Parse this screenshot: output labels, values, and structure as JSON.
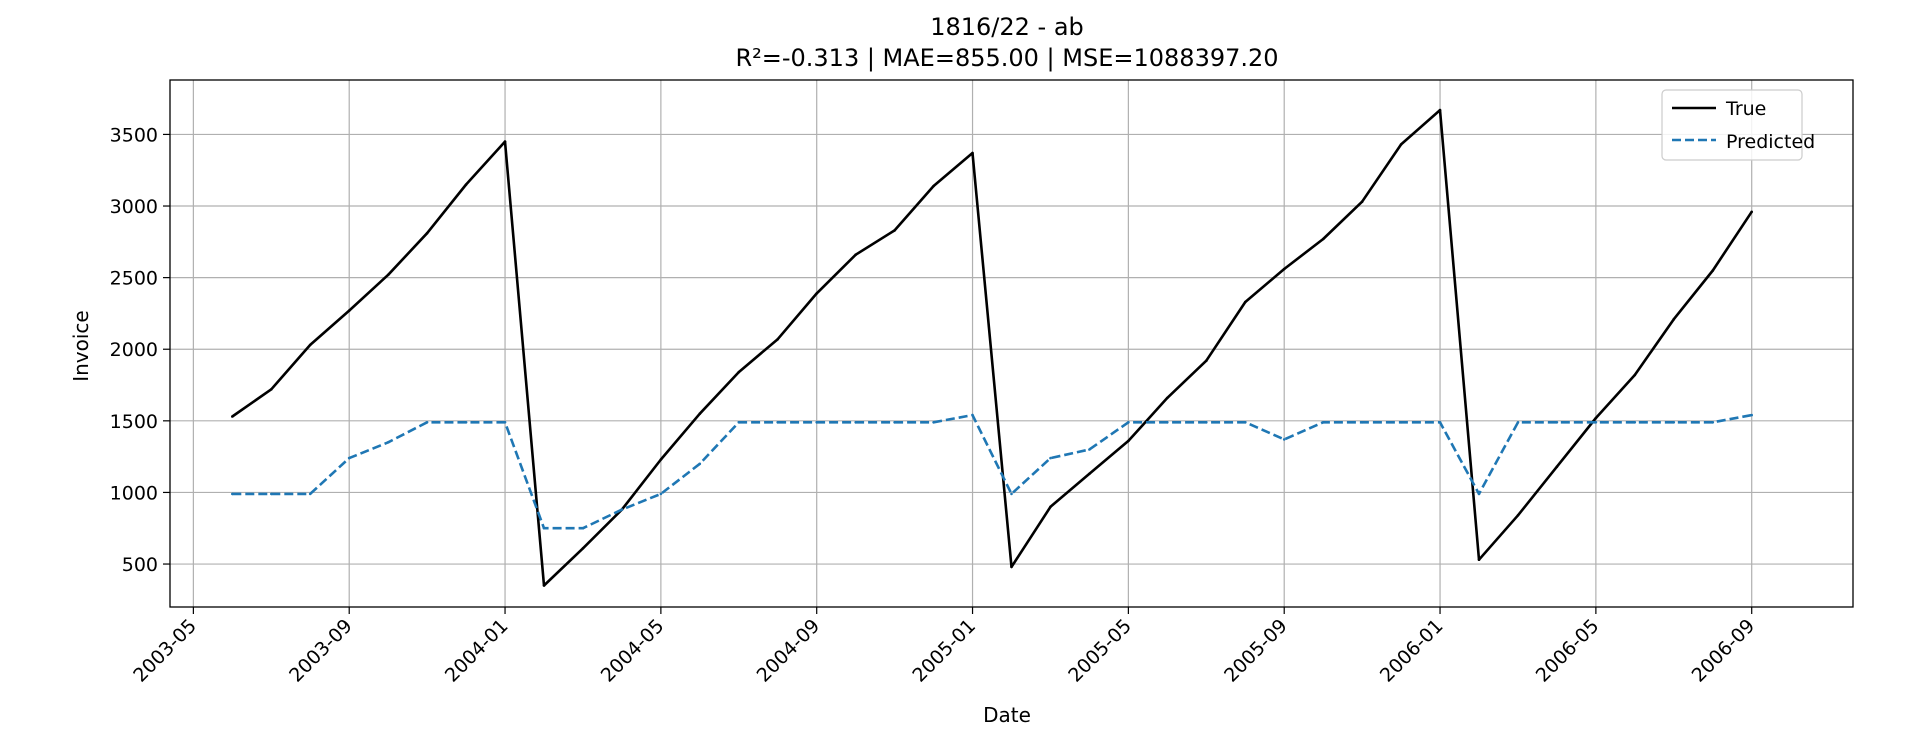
{
  "chart_data": {
    "type": "line",
    "title": "1816/22 - ab",
    "subtitle": "R²=-0.313 | MAE=855.00 | MSE=1088397.20",
    "xlabel": "Date",
    "ylabel": "Invoice",
    "x": [
      "2003-06",
      "2003-07",
      "2003-08",
      "2003-09",
      "2003-10",
      "2003-11",
      "2003-12",
      "2004-01",
      "2004-02",
      "2004-03",
      "2004-04",
      "2004-05",
      "2004-06",
      "2004-07",
      "2004-08",
      "2004-09",
      "2004-10",
      "2004-11",
      "2004-12",
      "2005-01",
      "2005-02",
      "2005-03",
      "2005-04",
      "2005-05",
      "2005-06",
      "2005-07",
      "2005-08",
      "2005-09",
      "2005-10",
      "2005-11",
      "2005-12",
      "2006-01",
      "2006-02",
      "2006-03",
      "2006-04",
      "2006-05",
      "2006-06",
      "2006-07",
      "2006-08",
      "2006-09"
    ],
    "series": [
      {
        "name": "True",
        "color": "#000000",
        "dash": "solid",
        "values": [
          1530,
          1720,
          2030,
          2270,
          2520,
          2810,
          3150,
          3450,
          350,
          610,
          880,
          1230,
          1550,
          1840,
          2070,
          2390,
          2660,
          2830,
          3140,
          3370,
          480,
          900,
          1130,
          1360,
          1660,
          1920,
          2330,
          2560,
          2770,
          3030,
          3430,
          3670,
          530,
          840,
          1180,
          1520,
          1820,
          2210,
          2550,
          2960
        ]
      },
      {
        "name": "Predicted",
        "color": "#1f77b4",
        "dash": "dashed",
        "values": [
          990,
          990,
          990,
          1240,
          1350,
          1490,
          1490,
          1490,
          750,
          750,
          880,
          990,
          1200,
          1490,
          1490,
          1490,
          1490,
          1490,
          1490,
          1540,
          990,
          1240,
          1300,
          1490,
          1490,
          1490,
          1490,
          1370,
          1490,
          1490,
          1490,
          1490,
          990,
          1490,
          1490,
          1490,
          1490,
          1490,
          1490,
          1540
        ]
      }
    ],
    "xticks": [
      "2003-05",
      "2003-09",
      "2004-01",
      "2004-05",
      "2004-09",
      "2005-01",
      "2005-05",
      "2005-09",
      "2006-01",
      "2006-05",
      "2006-09"
    ],
    "yticks": [
      500,
      1000,
      1500,
      2000,
      2500,
      3000,
      3500
    ],
    "xlim": [
      "2003-04",
      "2006-11"
    ],
    "ylim": [
      200,
      3880
    ],
    "grid": true,
    "legend_position": "top-right"
  }
}
